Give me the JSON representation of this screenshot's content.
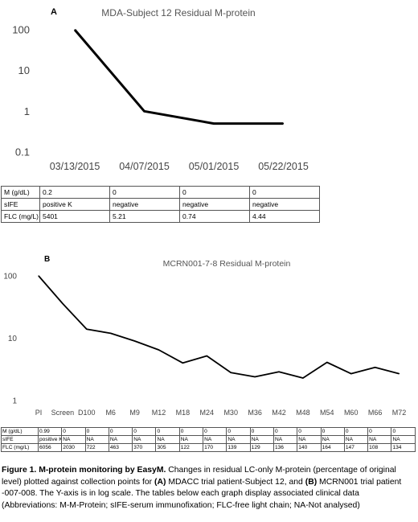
{
  "chart_data": [
    {
      "type": "line",
      "panel_label": "A",
      "title": "MDA-Subject 12 Residual M-protein",
      "categories": [
        "03/13/2015",
        "04/07/2015",
        "05/01/2015",
        "05/22/2015"
      ],
      "values": [
        100,
        1,
        0.5,
        0.5
      ],
      "y_scale": "log",
      "ylim": [
        0.1,
        100
      ],
      "ytick_labels": [
        "100",
        "10",
        "1",
        "0.1"
      ],
      "grid": false,
      "legend": "none"
    },
    {
      "type": "line",
      "panel_label": "B",
      "title": "MCRN001-7-8 Residual M-protein",
      "categories": [
        "PI",
        "Screen",
        "D100",
        "M6",
        "M9",
        "M12",
        "M18",
        "M24",
        "M30",
        "M36",
        "M42",
        "M48",
        "M54",
        "M60",
        "M66",
        "M72"
      ],
      "values": [
        100,
        36,
        14,
        12,
        9,
        6.5,
        4,
        5.2,
        2.8,
        2.4,
        2.9,
        2.3,
        4.1,
        2.7,
        3.4,
        2.7
      ],
      "y_scale": "log",
      "ylim": [
        1,
        100
      ],
      "ytick_labels": [
        "100",
        "10",
        "1"
      ],
      "grid": false,
      "legend": "none"
    }
  ],
  "tableA": {
    "rows": [
      {
        "label": "M  (g/dL)",
        "cells": [
          "0.2",
          "0",
          "0",
          "0"
        ]
      },
      {
        "label": "sIFE",
        "cells": [
          "positive K",
          "negative",
          "negative",
          "negative"
        ]
      },
      {
        "label": "FLC (mg/L)",
        "cells": [
          "5401",
          "5.21",
          " 0.74",
          "4.44"
        ]
      }
    ]
  },
  "tableB": {
    "rows": [
      {
        "label": "M (g/dL)",
        "cells": [
          "0.99",
          "0",
          "0",
          "0",
          "0",
          "0",
          "0",
          "0",
          "0",
          "0",
          "0",
          "0",
          "0",
          "0",
          "0",
          "0"
        ]
      },
      {
        "label": "sIFE",
        "cells": [
          "positive K",
          "NA",
          "NA",
          "NA",
          "NA",
          "NA",
          "NA",
          "NA",
          "NA",
          "NA",
          "NA",
          "NA",
          "NA",
          "NA",
          "NA",
          "NA"
        ]
      },
      {
        "label": "FLC (mg/L)",
        "cells": [
          "6056",
          "2030",
          "722",
          "463",
          "370",
          "305",
          "122",
          "170",
          "139",
          "129",
          "136",
          "140",
          "164",
          "147",
          "108",
          "134"
        ]
      }
    ]
  },
  "caption": {
    "title": "Figure 1. M-protein monitoring by EasyM.",
    "text1": "  Changes in residual LC-only M-protein (percentage of original level) plotted against collection points for ",
    "labelA": "(A)",
    "text2": " MDACC trial patient-Subject 12, and ",
    "labelB": "(B)",
    "text3": " MCRN001 trial patient -007-008. The Y-axis is in log scale. The tables below each graph display associated clinical data (Abbreviations: M-M-Protein; sIFE-serum immunofixation; FLC-free light chain; NA-Not analysed)"
  }
}
